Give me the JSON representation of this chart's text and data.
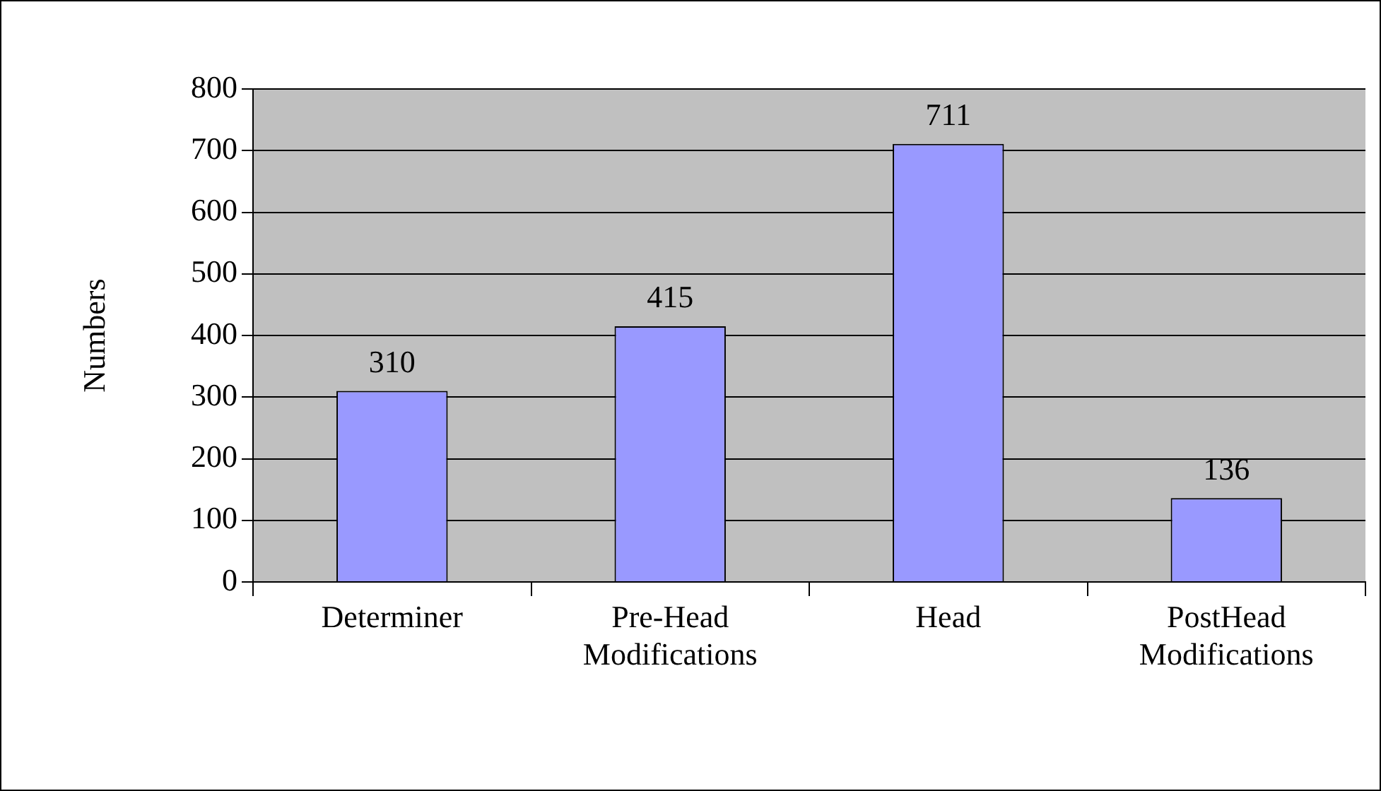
{
  "chart_data": {
    "type": "bar",
    "ylabel": "Numbers",
    "categories": [
      "Determiner",
      "Pre-Head Modifications",
      "Head",
      "PostHead Modifications"
    ],
    "values": [
      310,
      415,
      711,
      136
    ],
    "color": "#9999ff",
    "ylim": [
      0,
      800
    ],
    "yticks": [
      0,
      100,
      200,
      300,
      400,
      500,
      600,
      700,
      800
    ],
    "grid": "y",
    "data_labels": true,
    "legend": false
  }
}
